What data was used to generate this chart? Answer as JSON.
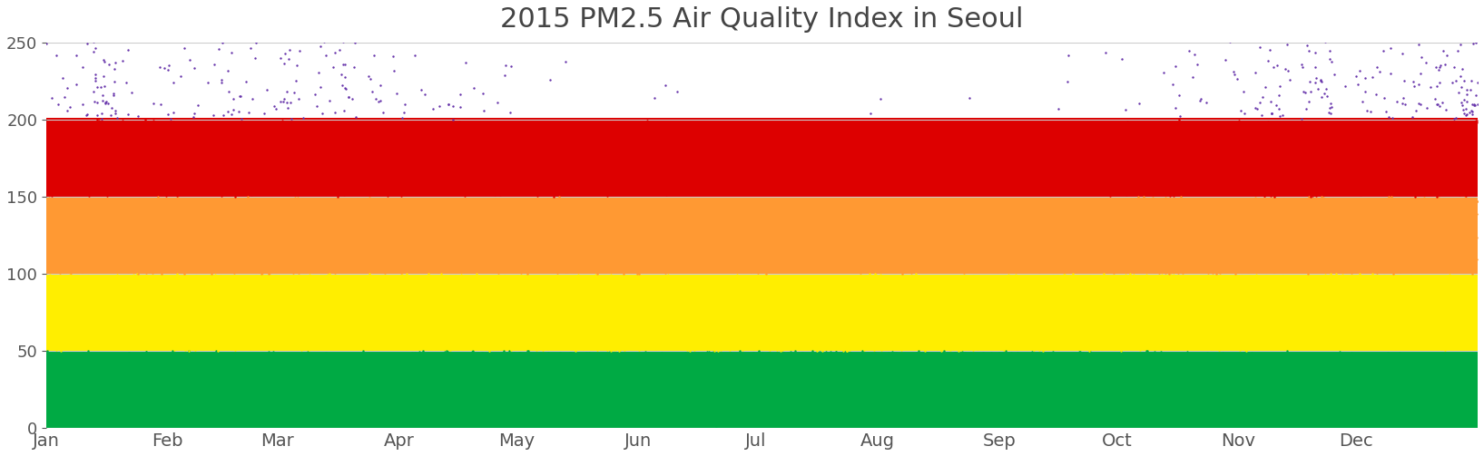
{
  "title": "2015 PM2.5 Air Quality Index in Seoul",
  "title_fontsize": 22,
  "xlim_days": [
    0,
    365
  ],
  "ylim": [
    0,
    250
  ],
  "yticks": [
    0,
    50,
    100,
    150,
    200,
    250
  ],
  "month_labels": [
    "Jan",
    "Feb",
    "Mar",
    "Apr",
    "May",
    "Jun",
    "Jul",
    "Aug",
    "Sep",
    "Oct",
    "Nov",
    "Dec"
  ],
  "month_positions": [
    0,
    31,
    59,
    90,
    120,
    151,
    181,
    212,
    243,
    273,
    304,
    334
  ],
  "color_green": "#00aa44",
  "color_yellow": "#ffee00",
  "color_orange": "#ff9933",
  "color_red": "#dd0000",
  "color_purple": "#6633aa",
  "dot_size": 3,
  "background_color": "#ffffff",
  "grid_color": "#cccccc",
  "seed": 2015,
  "title_color": "#444444",
  "tick_color": "#555555"
}
